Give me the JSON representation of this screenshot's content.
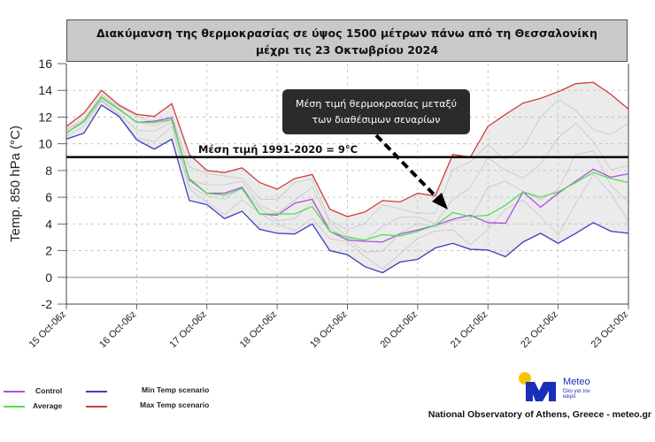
{
  "title": {
    "line1": "Διακύμανση της θερμοκρασίας σε ύψος 1500 μέτρων πάνω από τη Θεσσαλονίκη",
    "line2": "μέχρι τις 23 Οκτωβρίου 2024"
  },
  "chart_data": {
    "type": "line",
    "ylabel": "Temp. 850 hPa (°C)",
    "xlabel": "",
    "ylim": [
      -2,
      16
    ],
    "yticks": [
      -2,
      0,
      2,
      4,
      6,
      8,
      10,
      12,
      14,
      16
    ],
    "xtick_labels": [
      "15 Oct-06z",
      "16 Oct-06z",
      "17 Oct-06z",
      "18 Oct-06z",
      "19 Oct-06z",
      "20 Oct-06z",
      "21 Oct-06z",
      "22 Oct-06z",
      "23 Oct-00z"
    ],
    "grid": true,
    "legend_placement": "bottom-left",
    "reference_line": {
      "value": 9,
      "label": "Μέση τιμή 1991-2020 = 9°C",
      "color": "#000000"
    },
    "annotation": {
      "text_line1": "Μέση τιμή θερμοκρασίας μεταξύ",
      "text_line2": "των διαθέσιμων σεναρίων",
      "points_to": "Average"
    },
    "band_fill": "#ebebeb",
    "series": [
      {
        "name": "Max Temp scenario",
        "color": "#d23c3c",
        "values": [
          11.3,
          12.3,
          14.0,
          12.9,
          12.2,
          12.05,
          13.0,
          9.2,
          8.0,
          7.85,
          8.2,
          7.1,
          6.6,
          7.4,
          7.7,
          5.1,
          4.55,
          4.9,
          5.75,
          5.65,
          6.3,
          6.1,
          9.2,
          9.0,
          11.3,
          12.2,
          13.05,
          13.4,
          13.9,
          14.5,
          14.6,
          13.7,
          12.6
        ]
      },
      {
        "name": "Min Temp scenario",
        "color": "#3a3fc0",
        "values": [
          10.35,
          10.8,
          12.9,
          12.05,
          10.3,
          9.6,
          10.35,
          5.75,
          5.45,
          4.4,
          4.95,
          3.6,
          3.3,
          3.25,
          4.0,
          2.0,
          1.7,
          0.8,
          0.35,
          1.15,
          1.35,
          2.2,
          2.55,
          2.1,
          2.05,
          1.55,
          2.65,
          3.3,
          2.55,
          3.3,
          4.1,
          3.45,
          3.3
        ]
      },
      {
        "name": "Control",
        "color": "#b04ee0",
        "values": [
          10.8,
          11.7,
          13.5,
          12.6,
          11.6,
          11.7,
          11.95,
          7.3,
          6.3,
          6.3,
          6.75,
          4.75,
          4.65,
          5.55,
          5.85,
          3.45,
          2.8,
          2.7,
          2.65,
          3.25,
          3.55,
          3.9,
          4.35,
          4.65,
          4.1,
          4.05,
          6.4,
          5.25,
          6.3,
          7.2,
          8.1,
          7.5,
          7.75
        ]
      },
      {
        "name": "Average",
        "color": "#4ee04e",
        "values": [
          10.8,
          11.7,
          13.5,
          12.6,
          11.6,
          11.6,
          11.8,
          7.4,
          6.3,
          6.15,
          6.65,
          4.75,
          4.75,
          4.75,
          5.3,
          3.45,
          3.0,
          2.8,
          3.2,
          3.1,
          3.45,
          3.9,
          4.85,
          4.55,
          4.65,
          5.4,
          6.4,
          6.0,
          6.4,
          7.1,
          7.85,
          7.4,
          7.1
        ]
      }
    ]
  },
  "legend": [
    {
      "label": "Control",
      "color": "#b04ee0"
    },
    {
      "label": "Average",
      "color": "#4ee04e"
    },
    {
      "label": "Min Temp scenario",
      "color": "#3a3fc0"
    },
    {
      "label": "Max Temp scenario",
      "color": "#d23c3c"
    }
  ],
  "logo": {
    "word": "Meteo",
    "tagline": "Όλο για τον καιρό",
    "sun_color": "#f5c400",
    "brand_color": "#1a2fb8"
  },
  "footer": "National Observatory of Athens, Greece - meteo.gr"
}
